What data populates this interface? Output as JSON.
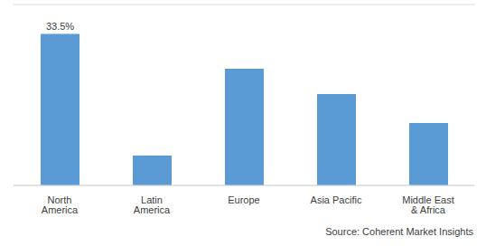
{
  "chart_data": {
    "type": "bar",
    "categories": [
      "North America",
      "Latin America",
      "Europe",
      "Asia Pacific",
      "Middle East & Africa"
    ],
    "values": [
      33.5,
      6.6,
      25.8,
      20.2,
      13.8
    ],
    "value_labels": [
      "33.5%",
      null,
      null,
      null,
      null
    ],
    "data_labels": true,
    "color": "#5b9bd5",
    "ylim": [
      0,
      40
    ],
    "yticks": [
      0,
      5,
      10,
      15,
      20,
      25,
      30,
      35,
      40
    ],
    "grid": true,
    "tick_labels": "x",
    "annotations": [
      "Source: Coherent Market Insights"
    ]
  }
}
